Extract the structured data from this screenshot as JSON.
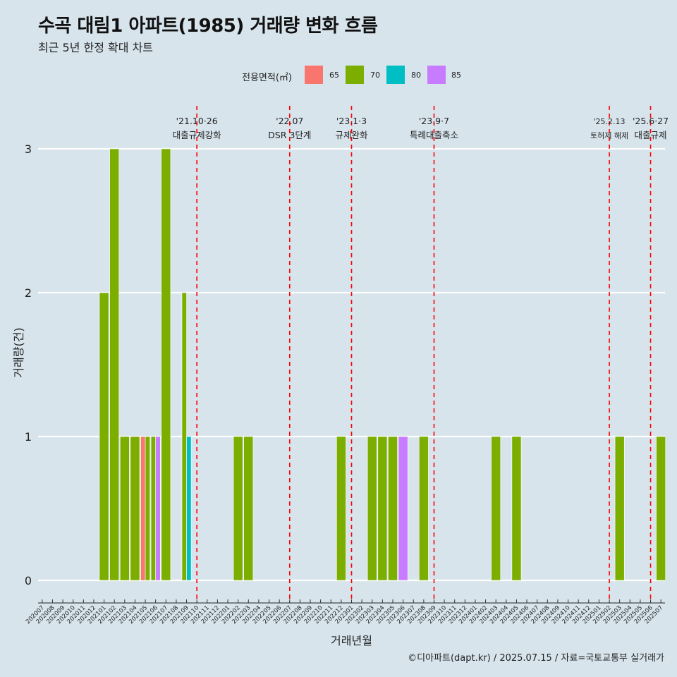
{
  "title": "수곡 대림1 아파트(1985) 거래량 변화 흐름",
  "subtitle": "최근 5년 한정 확대 차트",
  "caption": "©디아파트(dapt.kr) / 2025.07.15 / 자료=국토교통부 실거래가",
  "legend": {
    "title": "전용면적(㎡)",
    "items": [
      {
        "label": "65",
        "color": "#F8766D"
      },
      {
        "label": "70",
        "color": "#7CAE00"
      },
      {
        "label": "80",
        "color": "#00BFC4"
      },
      {
        "label": "85",
        "color": "#C77CFF"
      }
    ]
  },
  "chart_data": {
    "type": "bar",
    "xlabel": "거래년월",
    "ylabel": "거래량(건)",
    "ylim": [
      0,
      3
    ],
    "yticks": [
      0,
      1,
      2,
      3
    ],
    "grid": true,
    "legend_position": "top",
    "categories": [
      "202007",
      "202008",
      "202009",
      "202010",
      "202011",
      "202012",
      "202101",
      "202102",
      "202103",
      "202104",
      "202105",
      "202106",
      "202107",
      "202108",
      "202109",
      "202110",
      "202111",
      "202112",
      "202201",
      "202202",
      "202203",
      "202204",
      "202205",
      "202206",
      "202207",
      "202208",
      "202209",
      "202210",
      "202211",
      "202212",
      "202301",
      "202302",
      "202303",
      "202304",
      "202305",
      "202306",
      "202307",
      "202308",
      "202309",
      "202310",
      "202311",
      "202312",
      "202401",
      "202402",
      "202403",
      "202404",
      "202405",
      "202406",
      "202407",
      "202408",
      "202409",
      "202410",
      "202411",
      "202412",
      "202501",
      "202502",
      "202503",
      "202504",
      "202505",
      "202506",
      "202507"
    ],
    "bars": [
      {
        "month": "202101",
        "segments": [
          {
            "area": "70",
            "count": 2
          }
        ]
      },
      {
        "month": "202102",
        "segments": [
          {
            "area": "70",
            "count": 3
          }
        ]
      },
      {
        "month": "202103",
        "segments": [
          {
            "area": "70",
            "count": 1
          }
        ]
      },
      {
        "month": "202104",
        "segments": [
          {
            "area": "70",
            "count": 1
          }
        ]
      },
      {
        "month": "202105",
        "segments": [
          {
            "area": "65",
            "count": 1
          },
          {
            "area": "70",
            "count": 1
          }
        ]
      },
      {
        "month": "202106",
        "segments": [
          {
            "area": "70",
            "count": 1
          },
          {
            "area": "85",
            "count": 1
          }
        ]
      },
      {
        "month": "202107",
        "segments": [
          {
            "area": "70",
            "count": 3
          }
        ]
      },
      {
        "month": "202109",
        "segments": [
          {
            "area": "70",
            "count": 2
          },
          {
            "area": "80",
            "count": 1
          }
        ]
      },
      {
        "month": "202202",
        "segments": [
          {
            "area": "70",
            "count": 1
          }
        ]
      },
      {
        "month": "202203",
        "segments": [
          {
            "area": "70",
            "count": 1
          }
        ]
      },
      {
        "month": "202212",
        "segments": [
          {
            "area": "70",
            "count": 1
          }
        ]
      },
      {
        "month": "202303",
        "segments": [
          {
            "area": "70",
            "count": 1
          }
        ]
      },
      {
        "month": "202304",
        "segments": [
          {
            "area": "70",
            "count": 1
          }
        ]
      },
      {
        "month": "202305",
        "segments": [
          {
            "area": "70",
            "count": 1
          }
        ]
      },
      {
        "month": "202306",
        "segments": [
          {
            "area": "85",
            "count": 1
          }
        ]
      },
      {
        "month": "202308",
        "segments": [
          {
            "area": "70",
            "count": 1
          }
        ]
      },
      {
        "month": "202403",
        "segments": [
          {
            "area": "70",
            "count": 1
          }
        ]
      },
      {
        "month": "202405",
        "segments": [
          {
            "area": "70",
            "count": 1
          }
        ]
      },
      {
        "month": "202503",
        "segments": [
          {
            "area": "70",
            "count": 1
          }
        ]
      },
      {
        "month": "202507",
        "segments": [
          {
            "area": "70",
            "count": 1
          }
        ]
      }
    ],
    "events": [
      {
        "month": "202110",
        "date": "'21.10·26",
        "label": "대출규제강화"
      },
      {
        "month": "202207",
        "date": "'22.07",
        "label": "DSR 3단계"
      },
      {
        "month": "202301",
        "date": "'23.1·3",
        "label": "규제완화"
      },
      {
        "month": "202309",
        "date": "'23.9·7",
        "label": "특례대출축소"
      },
      {
        "month": "202502",
        "date": "'25.2.13",
        "label": "토허제 해제"
      },
      {
        "month": "202506",
        "date": "'25.6·27",
        "label": "대출규제"
      }
    ],
    "event_line_color": "#FF0000"
  }
}
